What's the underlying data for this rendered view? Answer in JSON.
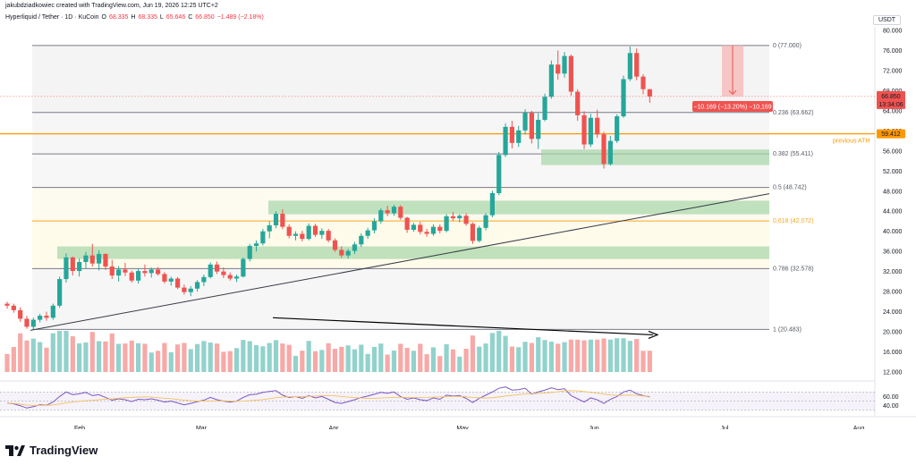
{
  "header": {
    "credit": "jakubdziadkowiec created with TradingView.com, Jun 19, 2026 12:25 UTC+2",
    "symbol": "Hyperliquid / Tether · 1D · KuCoin",
    "open_label": "O",
    "open": "68.335",
    "high_label": "H",
    "high": "68.335",
    "low_label": "L",
    "low": "65.646",
    "close_label": "C",
    "close": "66.850",
    "change": "−1.489 (−2.18%)"
  },
  "price_axis": {
    "unit": "USDT",
    "ticks": [
      "80.000",
      "76.000",
      "72.000",
      "68.000",
      "64.000",
      "60.000",
      "56.000",
      "52.000",
      "48.000",
      "44.000",
      "40.000",
      "36.000",
      "32.000",
      "28.000",
      "24.000",
      "20.000",
      "16.000",
      "12.000"
    ],
    "last_price": "66.850",
    "countdown": "13:34:06",
    "ath_price": "59.412"
  },
  "ath_label": "previous ATH",
  "measure_label": "−10.169 (−13.20%) −10,169",
  "fib_levels": [
    {
      "label": "0 (77.000)",
      "price": 77.0
    },
    {
      "label": "0.236 (63.662)",
      "price": 63.662
    },
    {
      "label": "0.382 (55.411)",
      "price": 55.411
    },
    {
      "label": "0.5 (48.742)",
      "price": 48.742
    },
    {
      "label": "0.618 (42.072)",
      "price": 42.072
    },
    {
      "label": "0.786 (32.578)",
      "price": 32.578
    },
    {
      "label": "1 (20.483)",
      "price": 20.483
    }
  ],
  "time_axis": [
    "Feb",
    "Mar",
    "Apr",
    "May",
    "Jun",
    "Jul",
    "Aug"
  ],
  "rsi": {
    "ticks": [
      "60.00",
      "40.00"
    ]
  },
  "brand": "TradingView",
  "colors": {
    "up": "#26a69a",
    "down": "#ef5350",
    "fib": "#787b86",
    "ath": "#ff9800",
    "zone": "#a5d6a7",
    "golden": "#f5a623",
    "rsi": "#7e57c2"
  },
  "chart_data": {
    "type": "candlestick",
    "pair": "HYPE/USDT",
    "interval": "1D",
    "y_range": [
      12,
      80
    ],
    "candles_ohlc": [
      [
        25.6,
        26.0,
        24.6,
        25.2
      ],
      [
        25.2,
        25.6,
        23.8,
        24.3
      ],
      [
        24.3,
        24.9,
        22.0,
        22.6
      ],
      [
        22.6,
        23.2,
        20.6,
        21.0
      ],
      [
        21.0,
        22.8,
        20.4,
        22.4
      ],
      [
        22.4,
        23.6,
        21.9,
        23.2
      ],
      [
        23.2,
        24.0,
        22.2,
        22.8
      ],
      [
        22.8,
        25.6,
        22.4,
        25.2
      ],
      [
        25.2,
        31.0,
        24.8,
        30.5
      ],
      [
        30.5,
        35.6,
        29.8,
        34.8
      ],
      [
        34.8,
        35.0,
        31.2,
        32.1
      ],
      [
        32.1,
        34.6,
        31.0,
        33.9
      ],
      [
        33.9,
        35.9,
        32.6,
        35.2
      ],
      [
        35.2,
        37.5,
        33.0,
        33.6
      ],
      [
        33.6,
        36.2,
        32.2,
        35.5
      ],
      [
        35.5,
        35.6,
        32.3,
        33.0
      ],
      [
        33.0,
        34.3,
        30.5,
        31.2
      ],
      [
        31.2,
        33.1,
        30.0,
        32.4
      ],
      [
        32.4,
        33.7,
        31.1,
        31.8
      ],
      [
        31.8,
        32.2,
        29.8,
        30.2
      ],
      [
        30.2,
        32.6,
        29.6,
        32.1
      ],
      [
        32.1,
        33.4,
        31.0,
        31.7
      ],
      [
        31.7,
        32.8,
        30.8,
        32.4
      ],
      [
        32.4,
        32.9,
        31.2,
        31.5
      ],
      [
        31.5,
        31.9,
        29.6,
        30.0
      ],
      [
        30.0,
        31.0,
        29.2,
        30.6
      ],
      [
        30.6,
        30.9,
        28.5,
        28.8
      ],
      [
        28.8,
        29.4,
        27.4,
        27.9
      ],
      [
        27.9,
        29.1,
        27.1,
        28.6
      ],
      [
        28.6,
        30.3,
        28.0,
        29.9
      ],
      [
        29.9,
        31.4,
        29.1,
        30.9
      ],
      [
        30.9,
        33.8,
        30.6,
        33.4
      ],
      [
        33.4,
        34.0,
        31.5,
        32.0
      ],
      [
        32.0,
        32.8,
        30.7,
        31.3
      ],
      [
        31.3,
        31.8,
        30.2,
        30.6
      ],
      [
        30.6,
        31.4,
        29.9,
        31.0
      ],
      [
        31.0,
        34.8,
        30.8,
        34.5
      ],
      [
        34.5,
        37.5,
        34.0,
        37.1
      ],
      [
        37.1,
        38.2,
        36.0,
        37.6
      ],
      [
        37.6,
        40.5,
        37.2,
        40.0
      ],
      [
        40.0,
        42.0,
        38.6,
        41.2
      ],
      [
        41.2,
        44.0,
        40.6,
        43.5
      ],
      [
        43.5,
        44.4,
        40.4,
        40.9
      ],
      [
        40.9,
        41.4,
        38.6,
        39.1
      ],
      [
        39.1,
        40.0,
        38.2,
        39.5
      ],
      [
        39.5,
        40.1,
        38.0,
        38.5
      ],
      [
        38.5,
        41.6,
        38.2,
        41.1
      ],
      [
        41.1,
        41.5,
        38.9,
        39.3
      ],
      [
        39.3,
        40.6,
        38.5,
        40.1
      ],
      [
        40.1,
        40.5,
        37.8,
        38.2
      ],
      [
        38.2,
        38.6,
        35.9,
        36.3
      ],
      [
        36.3,
        37.0,
        34.7,
        35.2
      ],
      [
        35.2,
        36.5,
        34.6,
        36.1
      ],
      [
        36.1,
        37.9,
        35.5,
        37.4
      ],
      [
        37.4,
        39.6,
        36.9,
        39.1
      ],
      [
        39.1,
        40.7,
        38.5,
        40.2
      ],
      [
        40.2,
        42.6,
        39.6,
        42.0
      ],
      [
        42.0,
        44.6,
        41.5,
        44.2
      ],
      [
        44.2,
        45.1,
        43.0,
        43.6
      ],
      [
        43.6,
        45.3,
        43.1,
        44.9
      ],
      [
        44.9,
        45.2,
        42.3,
        42.7
      ],
      [
        42.7,
        42.9,
        39.7,
        40.3
      ],
      [
        40.3,
        41.7,
        39.9,
        41.3
      ],
      [
        41.3,
        41.9,
        39.4,
        39.9
      ],
      [
        39.9,
        40.5,
        38.9,
        39.5
      ],
      [
        39.5,
        41.4,
        39.1,
        40.9
      ],
      [
        40.9,
        41.4,
        39.6,
        40.1
      ],
      [
        40.1,
        43.4,
        39.8,
        43.0
      ],
      [
        43.0,
        43.9,
        42.1,
        42.6
      ],
      [
        42.6,
        43.4,
        41.8,
        43.1
      ],
      [
        43.1,
        43.6,
        41.1,
        41.5
      ],
      [
        41.5,
        41.8,
        37.5,
        38.1
      ],
      [
        38.1,
        41.1,
        37.8,
        40.7
      ],
      [
        40.7,
        43.6,
        40.2,
        43.2
      ],
      [
        43.2,
        48.1,
        42.8,
        47.6
      ],
      [
        47.6,
        55.8,
        47.2,
        55.2
      ],
      [
        55.2,
        61.5,
        54.8,
        60.8
      ],
      [
        60.8,
        62.0,
        56.5,
        57.6
      ],
      [
        57.6,
        61.0,
        56.8,
        60.1
      ],
      [
        60.1,
        64.3,
        59.3,
        63.6
      ],
      [
        63.6,
        64.0,
        57.5,
        58.4
      ],
      [
        58.4,
        63.5,
        56.4,
        62.2
      ],
      [
        62.2,
        67.4,
        61.9,
        66.8
      ],
      [
        66.8,
        74.0,
        66.4,
        73.2
      ],
      [
        73.2,
        76.0,
        70.2,
        71.4
      ],
      [
        71.4,
        75.7,
        70.6,
        74.9
      ],
      [
        74.9,
        75.2,
        67.0,
        67.8
      ],
      [
        67.8,
        68.3,
        62.0,
        63.1
      ],
      [
        63.1,
        63.9,
        56.4,
        57.3
      ],
      [
        57.3,
        63.4,
        56.8,
        62.6
      ],
      [
        62.6,
        64.2,
        58.6,
        59.3
      ],
      [
        59.3,
        59.8,
        52.5,
        53.4
      ],
      [
        53.4,
        59.0,
        53.1,
        58.0
      ],
      [
        58.0,
        63.3,
        57.6,
        62.9
      ],
      [
        62.9,
        71.0,
        62.6,
        70.3
      ],
      [
        70.3,
        76.8,
        69.9,
        75.5
      ],
      [
        75.5,
        76.4,
        70.1,
        70.8
      ],
      [
        70.8,
        71.3,
        67.3,
        68.3
      ],
      [
        68.3,
        68.3,
        65.6,
        66.85
      ]
    ],
    "rsi_range": [
      20,
      90
    ],
    "rsi": [
      46,
      44,
      40,
      35,
      38,
      42,
      41,
      48,
      60,
      70,
      64,
      66,
      69,
      62,
      64,
      58,
      52,
      55,
      53,
      49,
      54,
      53,
      55,
      52,
      48,
      50,
      46,
      42,
      45,
      49,
      52,
      58,
      53,
      50,
      48,
      50,
      58,
      64,
      65,
      69,
      71,
      73,
      63,
      58,
      60,
      56,
      62,
      57,
      60,
      54,
      47,
      45,
      49,
      53,
      58,
      61,
      65,
      69,
      67,
      70,
      60,
      54,
      57,
      53,
      51,
      57,
      54,
      63,
      61,
      62,
      56,
      47,
      56,
      63,
      70,
      78,
      81,
      74,
      75,
      78,
      65,
      70,
      74,
      79,
      75,
      77,
      62,
      55,
      48,
      57,
      53,
      45,
      54,
      60,
      70,
      74,
      66,
      62,
      59
    ]
  }
}
